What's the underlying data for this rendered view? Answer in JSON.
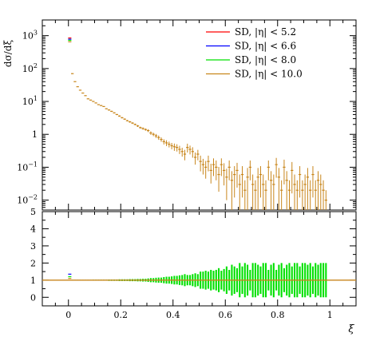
{
  "chart_data": [
    {
      "type": "line",
      "panel": "main",
      "ylabel": "dσ/dξ",
      "xlabel": "",
      "yscale": "log",
      "ylim": [
        0.005,
        3000
      ],
      "xlim": [
        -0.1,
        1.1
      ],
      "yticks": [
        {
          "v": 0.01,
          "b": "10",
          "e": "−2"
        },
        {
          "v": 0.1,
          "b": "10",
          "e": "−1"
        },
        {
          "v": 1,
          "b": "1",
          "e": ""
        },
        {
          "v": 10,
          "b": "10",
          "e": "1"
        },
        {
          "v": 100,
          "b": "10",
          "e": "2"
        },
        {
          "v": 1000,
          "b": "10",
          "e": "3"
        }
      ],
      "legend_position": "top-right",
      "legend": [
        {
          "label": "SD, |η| < 5.2",
          "color": "#ff0000"
        },
        {
          "label": "SD, |η| < 6.6",
          "color": "#0000ff"
        },
        {
          "label": "SD, |η| < 8.0",
          "color": "#00e000"
        },
        {
          "label": "SD, |η| < 10.0",
          "color": "#c8861c"
        }
      ],
      "first_bin_values": [
        850,
        780,
        720,
        650
      ],
      "x": [
        0.005,
        0.015,
        0.025,
        0.035,
        0.045,
        0.055,
        0.065,
        0.075,
        0.085,
        0.095,
        0.105,
        0.115,
        0.125,
        0.135,
        0.145,
        0.155,
        0.165,
        0.175,
        0.185,
        0.195,
        0.205,
        0.215,
        0.225,
        0.235,
        0.245,
        0.255,
        0.265,
        0.275,
        0.285,
        0.295,
        0.305,
        0.315,
        0.325,
        0.335,
        0.345,
        0.355,
        0.365,
        0.375,
        0.385,
        0.395,
        0.405,
        0.415,
        0.425,
        0.435,
        0.445,
        0.455,
        0.465,
        0.475,
        0.485,
        0.495,
        0.505,
        0.515,
        0.525,
        0.535,
        0.545,
        0.555,
        0.565,
        0.575,
        0.585,
        0.595,
        0.605,
        0.615,
        0.625,
        0.635,
        0.645,
        0.655,
        0.665,
        0.675,
        0.685,
        0.695,
        0.705,
        0.715,
        0.725,
        0.735,
        0.745,
        0.755,
        0.765,
        0.775,
        0.785,
        0.795,
        0.805,
        0.815,
        0.825,
        0.835,
        0.845,
        0.855,
        0.865,
        0.875,
        0.885,
        0.895,
        0.905,
        0.915,
        0.925,
        0.935,
        0.945,
        0.955,
        0.965,
        0.975,
        0.985
      ],
      "y": [
        null,
        70,
        40,
        28,
        22,
        18,
        15,
        12,
        11,
        10,
        9,
        8,
        7.5,
        7,
        6,
        5.5,
        5,
        4.5,
        4,
        3.6,
        3.2,
        2.9,
        2.6,
        2.4,
        2.2,
        2,
        1.8,
        1.6,
        1.5,
        1.4,
        1.3,
        1.1,
        1.0,
        0.9,
        0.8,
        0.7,
        0.6,
        0.55,
        0.5,
        0.45,
        0.42,
        0.4,
        0.35,
        0.3,
        0.25,
        0.4,
        0.35,
        0.3,
        0.2,
        0.25,
        0.15,
        0.12,
        0.1,
        0.15,
        0.08,
        0.12,
        0.1,
        0.06,
        0.12,
        0.08,
        0.05,
        0.1,
        0.04,
        0.06,
        0.08,
        0.03,
        0.06,
        0.02,
        0.05,
        0.1,
        0.03,
        0.02,
        0.05,
        0.06,
        0.03,
        0.02,
        0.1,
        0.04,
        0.03,
        0.12,
        0.05,
        0.02,
        0.1,
        0.04,
        0.02,
        0.08,
        0.03,
        0.02,
        0.06,
        0.02,
        0.03,
        0.05,
        0.02,
        0.06,
        0.02,
        0.04,
        0.03,
        0.02,
        0.01
      ],
      "rel_err": [
        0,
        0.02,
        0.02,
        0.02,
        0.02,
        0.02,
        0.02,
        0.02,
        0.02,
        0.03,
        0.03,
        0.03,
        0.03,
        0.03,
        0.03,
        0.04,
        0.04,
        0.04,
        0.04,
        0.05,
        0.05,
        0.05,
        0.05,
        0.06,
        0.06,
        0.06,
        0.07,
        0.07,
        0.08,
        0.08,
        0.1,
        0.12,
        0.12,
        0.14,
        0.15,
        0.15,
        0.18,
        0.2,
        0.2,
        0.22,
        0.25,
        0.25,
        0.28,
        0.3,
        0.35,
        0.3,
        0.3,
        0.35,
        0.4,
        0.35,
        0.5,
        0.5,
        0.55,
        0.5,
        0.6,
        0.55,
        0.6,
        0.7,
        0.55,
        0.65,
        0.8,
        0.6,
        0.9,
        0.8,
        0.7,
        1.0,
        0.8,
        1.0,
        0.9,
        0.6,
        1.0,
        1.0,
        0.9,
        0.8,
        1.0,
        1.0,
        0.6,
        0.9,
        1.0,
        0.6,
        0.9,
        1.0,
        0.7,
        0.9,
        1.0,
        0.8,
        1.0,
        1.0,
        0.8,
        1.0,
        1.0,
        0.9,
        1.0,
        0.8,
        1.0,
        0.9,
        1.0,
        1.0,
        1.0
      ]
    },
    {
      "type": "line",
      "panel": "ratio",
      "xlabel": "ξ",
      "ylabel": "",
      "ylim": [
        -0.5,
        5
      ],
      "xlim": [
        -0.1,
        1.1
      ],
      "xticks": [
        0,
        0.2,
        0.4,
        0.6,
        0.8,
        1
      ],
      "xticklabels": [
        "0",
        "0.2",
        "0.4",
        "0.6",
        "0.8",
        "1"
      ],
      "yticks": [
        0,
        1,
        2,
        3,
        4,
        5
      ],
      "yticklabels": [
        "0",
        "1",
        "2",
        "3",
        "4",
        "5"
      ],
      "first_bin_ratio": [
        1.35,
        1.2,
        1.1
      ],
      "ratio_value": 1.0,
      "band_color": "#00e000"
    }
  ]
}
